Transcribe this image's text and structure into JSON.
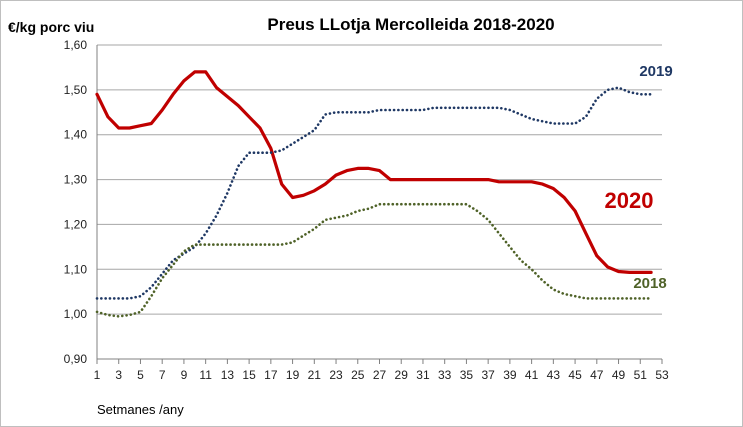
{
  "chart_data": {
    "type": "line",
    "title": "Preus  LLotja Mercolleida  2018-2020",
    "ylabel": "€/kg porc viu",
    "xlabel": "Setmanes /any",
    "ylim": [
      0.9,
      1.6
    ],
    "xlim": [
      1,
      53
    ],
    "yticks": [
      0.9,
      1.0,
      1.1,
      1.2,
      1.3,
      1.4,
      1.5,
      1.6
    ],
    "ytick_labels": [
      "0,90",
      "1,00",
      "1,10",
      "1,20",
      "1,30",
      "1,40",
      "1,50",
      "1,60"
    ],
    "xticks": [
      1,
      3,
      5,
      7,
      9,
      11,
      13,
      15,
      17,
      19,
      21,
      23,
      25,
      27,
      29,
      31,
      33,
      35,
      37,
      39,
      41,
      43,
      45,
      47,
      49,
      51,
      53
    ],
    "xtick_labels": [
      "1",
      "3",
      "5",
      "7",
      "9",
      "11",
      "13",
      "15",
      "17",
      "19",
      "21",
      "23",
      "25",
      "27",
      "29",
      "31",
      "33",
      "35",
      "37",
      "39",
      "41",
      "43",
      "45",
      "47",
      "49",
      "51",
      "53"
    ],
    "grid": "horizontal",
    "series": [
      {
        "name": "2020",
        "style": "solid",
        "color": "#c00000",
        "x": [
          1,
          2,
          3,
          4,
          5,
          6,
          7,
          8,
          9,
          10,
          11,
          12,
          13,
          14,
          15,
          16,
          17,
          18,
          19,
          20,
          21,
          22,
          23,
          24,
          25,
          26,
          27,
          28,
          29,
          30,
          31,
          32,
          33,
          34,
          35,
          36,
          37,
          38,
          39,
          40,
          41,
          42,
          43,
          44,
          45,
          46,
          47,
          48,
          49,
          50,
          51,
          52
        ],
        "values": [
          1.49,
          1.44,
          1.415,
          1.415,
          1.42,
          1.425,
          1.455,
          1.49,
          1.52,
          1.54,
          1.54,
          1.505,
          1.485,
          1.465,
          1.44,
          1.415,
          1.37,
          1.29,
          1.26,
          1.265,
          1.275,
          1.29,
          1.31,
          1.32,
          1.325,
          1.325,
          1.32,
          1.3,
          1.3,
          1.3,
          1.3,
          1.3,
          1.3,
          1.3,
          1.3,
          1.3,
          1.3,
          1.295,
          1.295,
          1.295,
          1.295,
          1.29,
          1.28,
          1.26,
          1.23,
          1.18,
          1.13,
          1.105,
          1.095,
          1.093,
          1.093,
          1.093
        ]
      },
      {
        "name": "2019",
        "style": "dotted",
        "color": "#1f3864",
        "x": [
          1,
          2,
          3,
          4,
          5,
          6,
          7,
          8,
          9,
          10,
          11,
          12,
          13,
          14,
          15,
          16,
          17,
          18,
          19,
          20,
          21,
          22,
          23,
          24,
          25,
          26,
          27,
          28,
          29,
          30,
          31,
          32,
          33,
          34,
          35,
          36,
          37,
          38,
          39,
          40,
          41,
          42,
          43,
          44,
          45,
          46,
          47,
          48,
          49,
          50,
          51,
          52
        ],
        "values": [
          1.035,
          1.035,
          1.035,
          1.035,
          1.04,
          1.06,
          1.09,
          1.12,
          1.135,
          1.15,
          1.18,
          1.22,
          1.27,
          1.33,
          1.36,
          1.36,
          1.36,
          1.365,
          1.38,
          1.395,
          1.41,
          1.445,
          1.45,
          1.45,
          1.45,
          1.45,
          1.455,
          1.455,
          1.455,
          1.455,
          1.455,
          1.46,
          1.46,
          1.46,
          1.46,
          1.46,
          1.46,
          1.46,
          1.455,
          1.445,
          1.435,
          1.43,
          1.425,
          1.425,
          1.425,
          1.44,
          1.48,
          1.5,
          1.505,
          1.495,
          1.49,
          1.49
        ]
      },
      {
        "name": "2018",
        "style": "dotted",
        "color": "#4f6228",
        "x": [
          1,
          2,
          3,
          4,
          5,
          6,
          7,
          8,
          9,
          10,
          11,
          12,
          13,
          14,
          15,
          16,
          17,
          18,
          19,
          20,
          21,
          22,
          23,
          24,
          25,
          26,
          27,
          28,
          29,
          30,
          31,
          32,
          33,
          34,
          35,
          36,
          37,
          38,
          39,
          40,
          41,
          42,
          43,
          44,
          45,
          46,
          47,
          48,
          49,
          50,
          51,
          52
        ],
        "values": [
          1.005,
          0.998,
          0.995,
          0.998,
          1.005,
          1.04,
          1.08,
          1.11,
          1.14,
          1.155,
          1.155,
          1.155,
          1.155,
          1.155,
          1.155,
          1.155,
          1.155,
          1.155,
          1.16,
          1.175,
          1.19,
          1.21,
          1.215,
          1.22,
          1.23,
          1.235,
          1.245,
          1.245,
          1.245,
          1.245,
          1.245,
          1.245,
          1.245,
          1.245,
          1.245,
          1.23,
          1.21,
          1.18,
          1.15,
          1.12,
          1.1,
          1.075,
          1.055,
          1.045,
          1.04,
          1.035,
          1.035,
          1.035,
          1.035,
          1.035,
          1.035,
          1.035
        ]
      }
    ]
  }
}
